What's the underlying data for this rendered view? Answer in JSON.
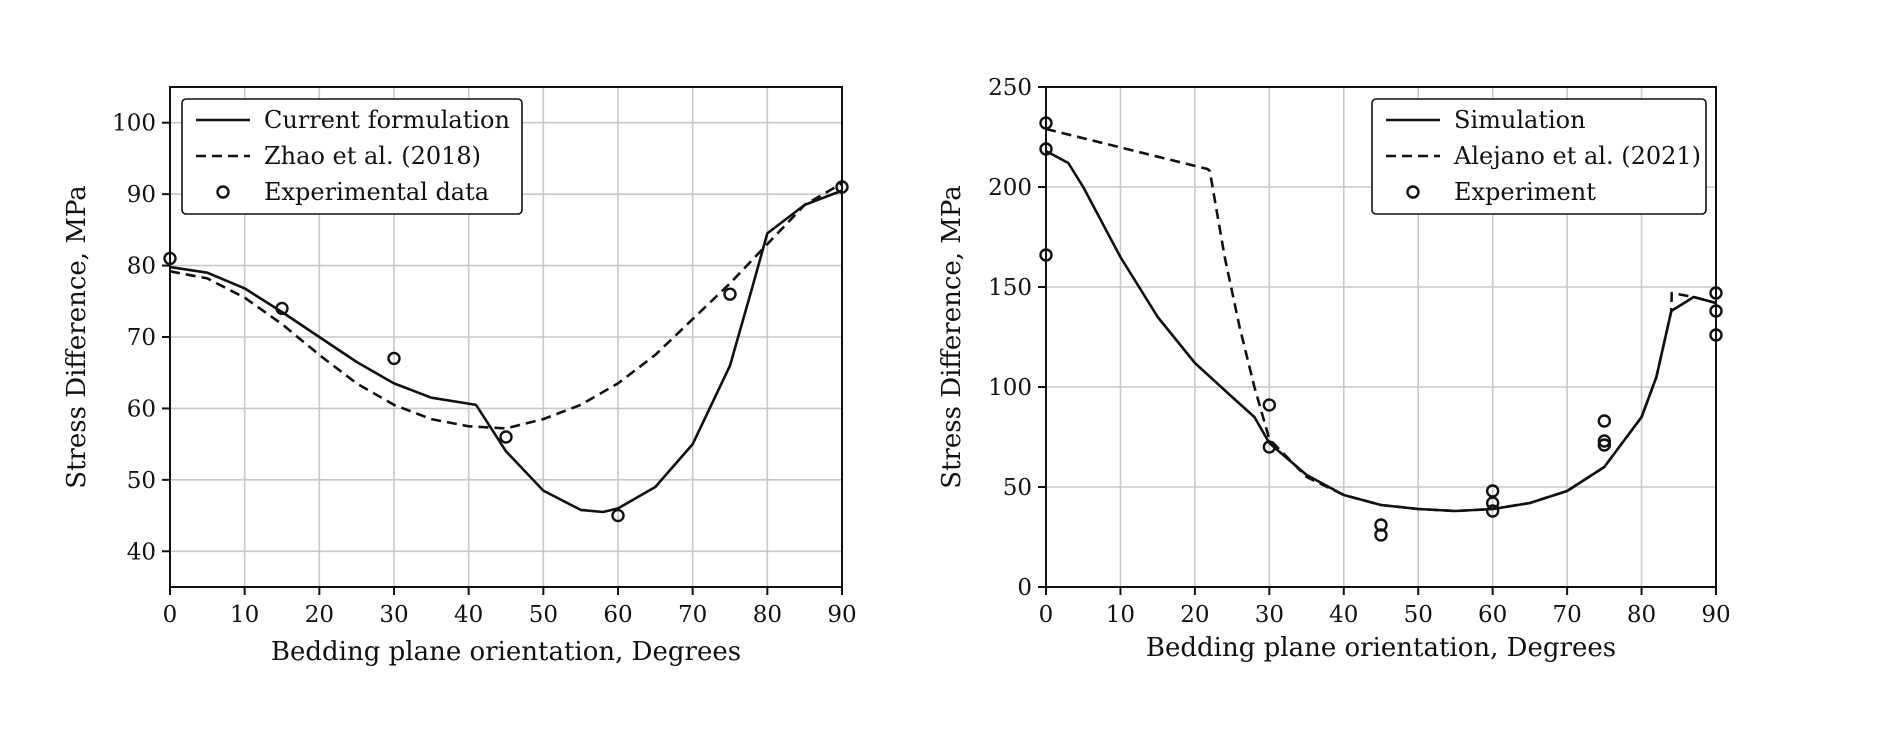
{
  "chart_data": [
    {
      "type": "line",
      "xlabel": "Bedding plane orientation, Degrees",
      "ylabel": "Stress Difference, MPa",
      "xlim": [
        0,
        90
      ],
      "ylim": [
        35,
        105
      ],
      "xticks": [
        0,
        10,
        20,
        30,
        40,
        50,
        60,
        70,
        80,
        90
      ],
      "yticks": [
        40,
        50,
        60,
        70,
        80,
        90,
        100
      ],
      "grid": true,
      "legend_position": "top-left",
      "series": [
        {
          "name": "Current formulation",
          "style": "solid",
          "x": [
            0,
            5,
            10,
            15,
            20,
            25,
            30,
            35,
            41,
            45,
            50,
            55,
            58,
            60,
            65,
            70,
            75,
            78,
            80,
            85,
            90
          ],
          "y": [
            79.8,
            79,
            76.8,
            73.5,
            70,
            66.5,
            63.5,
            61.5,
            60.5,
            54,
            48.5,
            45.8,
            45.5,
            46,
            49,
            55,
            66,
            77,
            84.5,
            88.5,
            90.5
          ]
        },
        {
          "name": "Zhao et al. (2018)",
          "style": "dashed",
          "x": [
            0,
            5,
            10,
            15,
            20,
            25,
            30,
            35,
            40,
            45,
            50,
            55,
            60,
            65,
            70,
            75,
            80,
            85,
            90
          ],
          "y": [
            79.2,
            78.2,
            75.5,
            71.8,
            67.5,
            63.5,
            60.5,
            58.5,
            57.5,
            57.2,
            58.5,
            60.5,
            63.5,
            67.5,
            72.5,
            77.5,
            83,
            88.5,
            91.5
          ]
        },
        {
          "name": "Experimental data",
          "style": "markers",
          "x": [
            0,
            15,
            30,
            45,
            60,
            75,
            90
          ],
          "y": [
            81,
            74,
            67,
            56,
            45,
            76,
            91
          ]
        }
      ]
    },
    {
      "type": "line",
      "xlabel": "Bedding plane orientation, Degrees",
      "ylabel": "Stress Difference, MPa",
      "xlim": [
        0,
        90
      ],
      "ylim": [
        0,
        250
      ],
      "xticks": [
        0,
        10,
        20,
        30,
        40,
        50,
        60,
        70,
        80,
        90
      ],
      "yticks": [
        0,
        50,
        100,
        150,
        200,
        250
      ],
      "grid": true,
      "legend_position": "top-right",
      "series": [
        {
          "name": "Simulation",
          "style": "solid",
          "x": [
            0,
            3,
            5,
            10,
            15,
            20,
            25,
            28,
            30,
            35,
            40,
            45,
            50,
            55,
            60,
            65,
            70,
            75,
            80,
            82,
            84,
            87,
            90
          ],
          "y": [
            218,
            212,
            200,
            165,
            135,
            112,
            95,
            85,
            72,
            56,
            46,
            41,
            39,
            38,
            39,
            42,
            48,
            60,
            85,
            105,
            138,
            145,
            142
          ]
        },
        {
          "name": "Alejano et al. (2021)",
          "style": "dashed",
          "x": [
            0,
            21.7,
            22,
            24,
            26,
            28,
            30,
            35,
            40,
            45,
            50,
            55,
            60,
            65,
            70,
            75,
            80,
            82,
            84,
            84.05,
            87,
            90
          ],
          "y": [
            229,
            209,
            208,
            165,
            130,
            100,
            74,
            55,
            46,
            41,
            39,
            38,
            39,
            42,
            48,
            60,
            85,
            105,
            138,
            147,
            145,
            142
          ]
        },
        {
          "name": "Experiment",
          "style": "markers",
          "x": [
            0,
            0,
            0,
            30,
            30,
            45,
            45,
            60,
            60,
            60,
            75,
            75,
            75,
            90,
            90,
            90
          ],
          "y": [
            232,
            219,
            166,
            91,
            70,
            31,
            26,
            48,
            42,
            38,
            83,
            73,
            71,
            147,
            138,
            126
          ]
        }
      ]
    }
  ]
}
